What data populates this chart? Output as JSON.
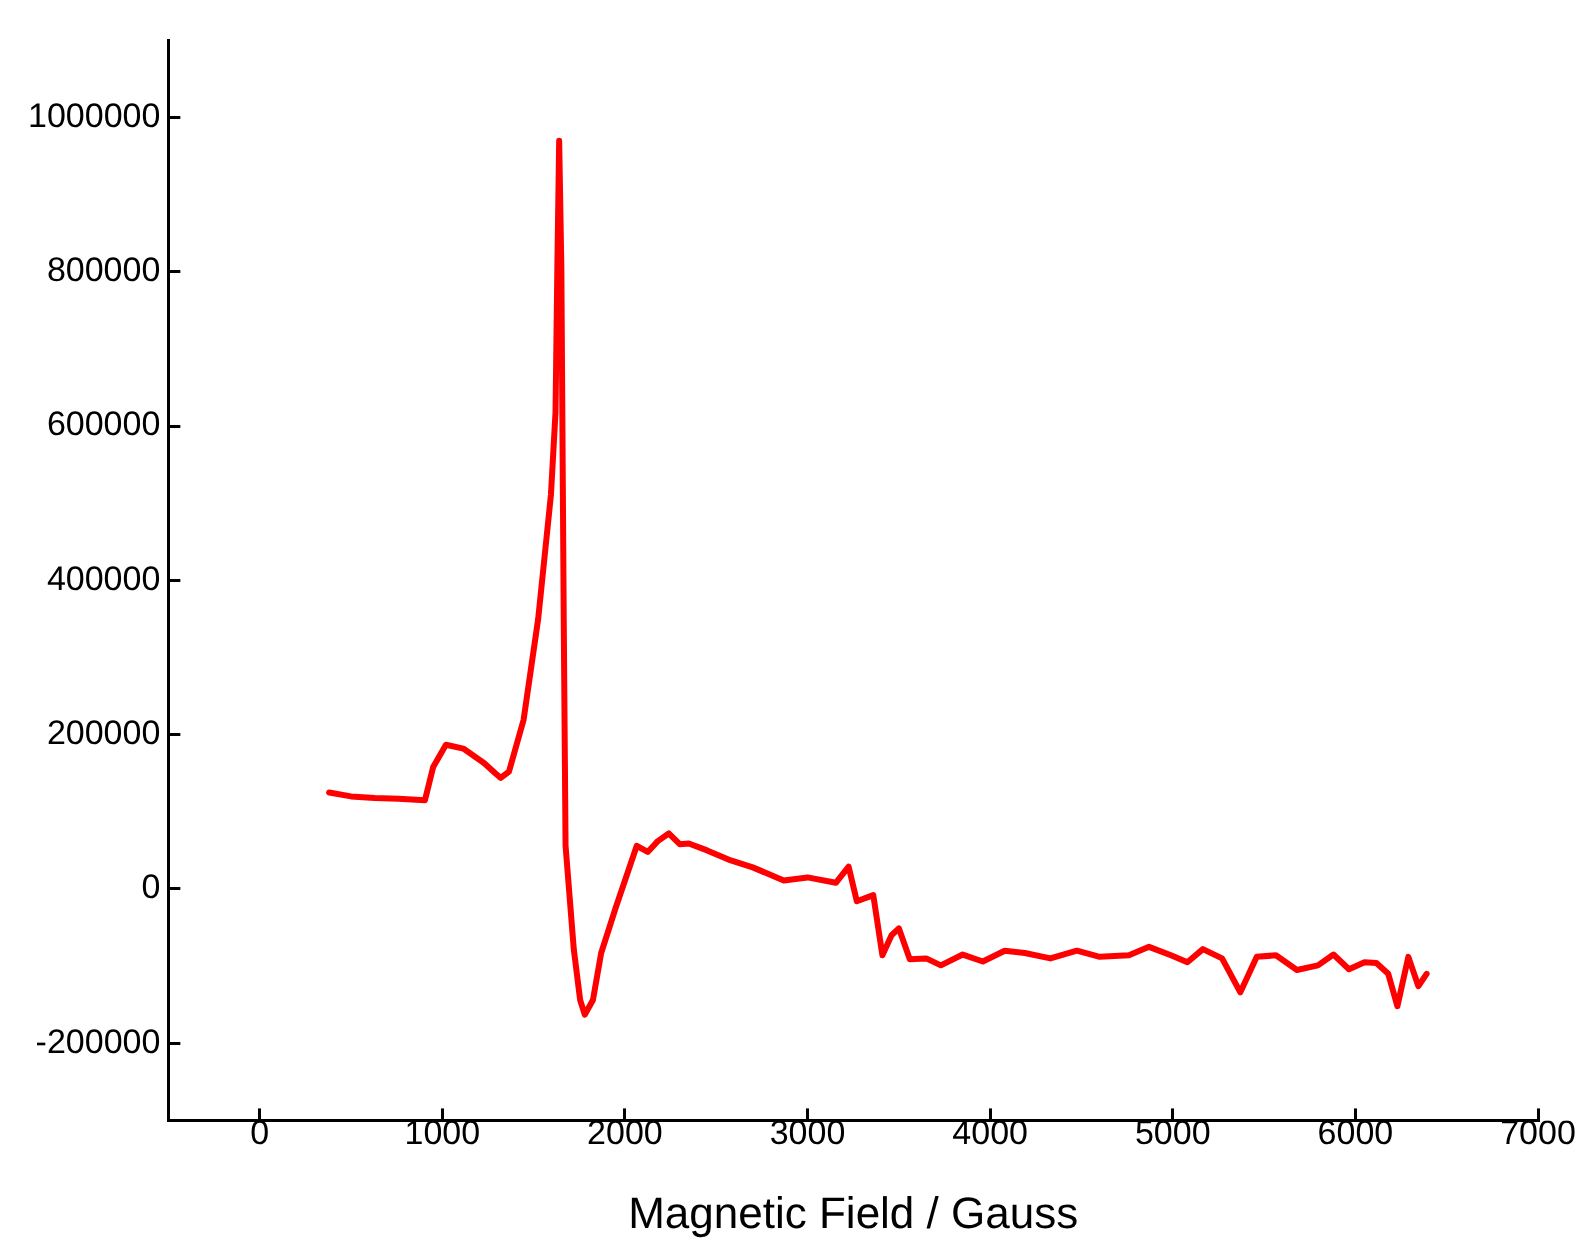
{
  "chart_data": {
    "type": "line",
    "xlabel": "Magnetic Field / Gauss",
    "xlim": [
      -500,
      7000
    ],
    "xticks": [
      0,
      1000,
      2000,
      3000,
      4000,
      5000,
      6000,
      7000
    ],
    "ylim": [
      -300000,
      1100000
    ],
    "yticks": [
      -200000,
      0,
      200000,
      400000,
      600000,
      800000,
      1000000
    ],
    "grid": false,
    "legend": false,
    "marker": "none",
    "line_style": "solid",
    "series": [
      {
        "color": "#ff0000",
        "x": [
          380,
          500,
          630,
          760,
          905,
          950,
          1020,
          1115,
          1230,
          1290,
          1320,
          1365,
          1445,
          1525,
          1595,
          1620,
          1630,
          1640,
          1652,
          1665,
          1675,
          1720,
          1755,
          1780,
          1825,
          1870,
          1950,
          2065,
          2125,
          2180,
          2240,
          2300,
          2350,
          2450,
          2580,
          2700,
          2870,
          3000,
          3155,
          3225,
          3270,
          3360,
          3410,
          3460,
          3500,
          3560,
          3650,
          3730,
          3850,
          3960,
          4080,
          4190,
          4330,
          4475,
          4600,
          4760,
          4870,
          4990,
          5080,
          5165,
          5270,
          5370,
          5460,
          5565,
          5680,
          5795,
          5880,
          5965,
          6050,
          6115,
          6180,
          6230,
          6290,
          6345,
          6390
        ],
        "values": [
          125000,
          120000,
          118000,
          117000,
          115000,
          158000,
          187000,
          182000,
          163000,
          150000,
          144000,
          152000,
          219000,
          350000,
          511000,
          618000,
          805000,
          970000,
          805000,
          350000,
          56000,
          -78000,
          -144000,
          -163000,
          -144000,
          -83000,
          -24000,
          56000,
          48000,
          62000,
          72000,
          58000,
          59000,
          50000,
          37000,
          28000,
          11000,
          15000,
          8000,
          29000,
          -16000,
          -8000,
          -86000,
          -60000,
          -51000,
          -91000,
          -90000,
          -99000,
          -85000,
          -94000,
          -80000,
          -83000,
          -90000,
          -80000,
          -88000,
          -86000,
          -75000,
          -86000,
          -95000,
          -78000,
          -90000,
          -134000,
          -88000,
          -86000,
          -105000,
          -99000,
          -85000,
          -104000,
          -95000,
          -96000,
          -110000,
          -152000,
          -88000,
          -126000,
          -110000
        ]
      }
    ]
  }
}
